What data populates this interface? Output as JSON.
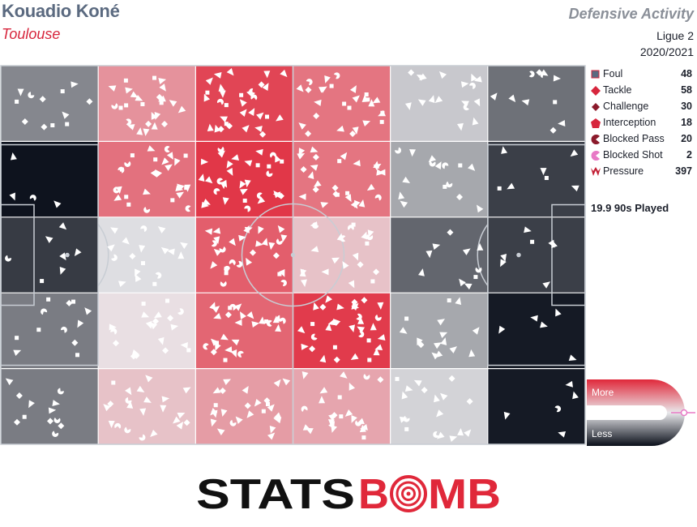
{
  "header": {
    "player": "Kouadio Koné",
    "team": "Toulouse",
    "title": "Defensive Activity",
    "competition": "Ligue 2",
    "season": "2020/2021"
  },
  "legend": [
    {
      "label": "Foul",
      "count": "48",
      "icon": "square",
      "color": "#5b6a80"
    },
    {
      "label": "Tackle",
      "count": "58",
      "icon": "diamond",
      "color": "#d7263d"
    },
    {
      "label": "Challenge",
      "count": "30",
      "icon": "diamond-small",
      "color": "#8b1a2b"
    },
    {
      "label": "Interception",
      "count": "18",
      "icon": "pentagon",
      "color": "#d7263d"
    },
    {
      "label": "Blocked Pass",
      "count": "20",
      "icon": "pacman",
      "color": "#8b1a2b"
    },
    {
      "label": "Blocked Shot",
      "count": "2",
      "icon": "pacman",
      "color": "#e879c6"
    },
    {
      "label": "Pressure",
      "count": "397",
      "icon": "chevrons",
      "color": "#c21f35"
    }
  ],
  "played": "19.9 90s Played",
  "scale": {
    "more": "More",
    "less": "Less",
    "high_color": "#e0283a",
    "low_color": "#0a0f1a"
  },
  "logo": {
    "text_left": "STATS",
    "text_right": "B",
    "text_target": "O",
    "text_end": "MB"
  },
  "chart_data": {
    "type": "heatmap",
    "description_values": "zone activity relative to average: positive = more (red), negative = less (dark navy)",
    "columns": 6,
    "rows": 5,
    "grid": [
      [
        -0.45,
        0.45,
        0.85,
        0.6,
        -0.15,
        -0.55
      ],
      [
        -0.98,
        0.62,
        0.92,
        0.6,
        -0.3,
        -0.78
      ],
      [
        -0.8,
        -0.05,
        0.72,
        0.2,
        -0.6,
        -0.78
      ],
      [
        -0.5,
        0.05,
        0.68,
        0.9,
        -0.3,
        -0.95
      ],
      [
        -0.5,
        0.2,
        0.4,
        0.35,
        -0.1,
        -0.95
      ]
    ],
    "color_scale": {
      "more": "#e0283a",
      "less": "#0a0f1a"
    }
  }
}
